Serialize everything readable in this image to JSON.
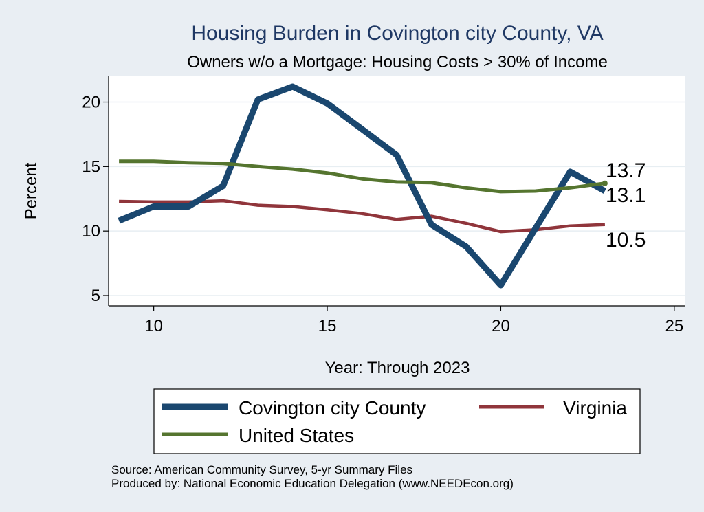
{
  "chart_data": {
    "type": "line",
    "title": "Housing Burden in Covington city County, VA",
    "subtitle": "Owners w/o a Mortgage: Housing Costs > 30% of Income",
    "xlabel": "Year: Through 2023",
    "ylabel": "Percent",
    "xlim": [
      8.7,
      25.3
    ],
    "ylim": [
      4.2,
      22.0
    ],
    "xticks": [
      10,
      15,
      20,
      25
    ],
    "yticks": [
      5,
      10,
      15,
      20
    ],
    "grid": true,
    "series": [
      {
        "name": "Covington city County",
        "color": "#1a476f",
        "x": [
          9,
          10,
          11,
          12,
          13,
          14,
          15,
          16,
          17,
          18,
          19,
          20,
          21,
          22,
          23
        ],
        "values": [
          10.8,
          11.9,
          11.9,
          13.5,
          20.2,
          21.2,
          19.9,
          17.9,
          15.9,
          10.5,
          8.8,
          5.8,
          10.2,
          14.6,
          13.1
        ],
        "end_label": "13.1"
      },
      {
        "name": "Virginia",
        "color": "#90353b",
        "x": [
          9,
          10,
          11,
          12,
          13,
          14,
          15,
          16,
          17,
          18,
          19,
          20,
          21,
          22,
          23
        ],
        "values": [
          12.3,
          12.25,
          12.25,
          12.35,
          12.0,
          11.9,
          11.65,
          11.35,
          10.9,
          11.15,
          10.6,
          9.95,
          10.1,
          10.4,
          10.5
        ],
        "end_label": "10.5"
      },
      {
        "name": "United States",
        "color": "#55752f",
        "x": [
          9,
          10,
          11,
          12,
          13,
          14,
          15,
          16,
          17,
          18,
          19,
          20,
          21,
          22,
          23
        ],
        "values": [
          15.4,
          15.4,
          15.3,
          15.25,
          15.0,
          14.8,
          14.5,
          14.05,
          13.8,
          13.75,
          13.35,
          13.05,
          13.1,
          13.35,
          13.7
        ],
        "end_label": "13.7"
      }
    ],
    "legend": {
      "placement": "bottom",
      "entries": [
        "Covington city County",
        "Virginia",
        "United States"
      ]
    },
    "notes": [
      "Source: American Community Survey, 5-yr Summary Files",
      "Produced by: National Economic Education Delegation (www.NEEDEcon.org)"
    ]
  }
}
